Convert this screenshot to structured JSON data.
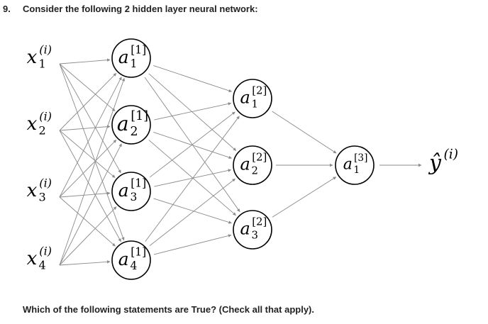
{
  "question": {
    "number": "9.",
    "prompt": "Consider the following 2 hidden layer neural network:",
    "instruction": "Which of the following statements are True? (Check all that apply)."
  },
  "network": {
    "inputs": [
      {
        "var": "x",
        "sup": "(i)",
        "sub": "1"
      },
      {
        "var": "x",
        "sup": "(i)",
        "sub": "2"
      },
      {
        "var": "x",
        "sup": "(i)",
        "sub": "3"
      },
      {
        "var": "x",
        "sup": "(i)",
        "sub": "4"
      }
    ],
    "layer1": [
      {
        "var": "a",
        "sup": "[1]",
        "sub": "1"
      },
      {
        "var": "a",
        "sup": "[1]",
        "sub": "2"
      },
      {
        "var": "a",
        "sup": "[1]",
        "sub": "3"
      },
      {
        "var": "a",
        "sup": "[1]",
        "sub": "4"
      }
    ],
    "layer2": [
      {
        "var": "a",
        "sup": "[2]",
        "sub": "1"
      },
      {
        "var": "a",
        "sup": "[2]",
        "sub": "2"
      },
      {
        "var": "a",
        "sup": "[2]",
        "sub": "3"
      }
    ],
    "layer3": [
      {
        "var": "a",
        "sup": "[3]",
        "sub": "1"
      }
    ],
    "output": {
      "var": "ŷ",
      "sup": "(i)"
    }
  }
}
